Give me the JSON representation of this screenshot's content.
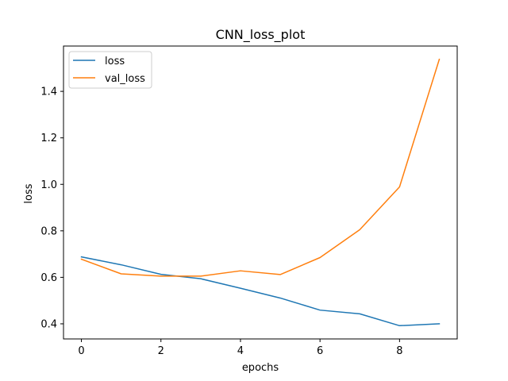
{
  "chart_data": {
    "type": "line",
    "title": "CNN_loss_plot",
    "xlabel": "epochs",
    "ylabel": "loss",
    "x": [
      0,
      1,
      2,
      3,
      4,
      5,
      6,
      7,
      8,
      9
    ],
    "xlim": [
      -0.45,
      9.45
    ],
    "ylim": [
      0.335,
      1.595
    ],
    "xticks": [
      0,
      2,
      4,
      6,
      8
    ],
    "yticks": [
      0.4,
      0.6,
      0.8,
      1.0,
      1.2,
      1.4
    ],
    "xtick_labels": [
      "0",
      "2",
      "4",
      "6",
      "8"
    ],
    "ytick_labels": [
      "0.4",
      "0.6",
      "0.8",
      "1.0",
      "1.2",
      "1.4"
    ],
    "grid": false,
    "legend_position": "top-left",
    "series": [
      {
        "name": "loss",
        "color": "#1f77b4",
        "values": [
          0.688,
          0.654,
          0.613,
          0.594,
          0.553,
          0.511,
          0.459,
          0.443,
          0.392,
          0.4
        ]
      },
      {
        "name": "val_loss",
        "color": "#ff7f0e",
        "values": [
          0.678,
          0.615,
          0.605,
          0.605,
          0.628,
          0.612,
          0.685,
          0.805,
          0.989,
          1.538
        ]
      }
    ]
  }
}
